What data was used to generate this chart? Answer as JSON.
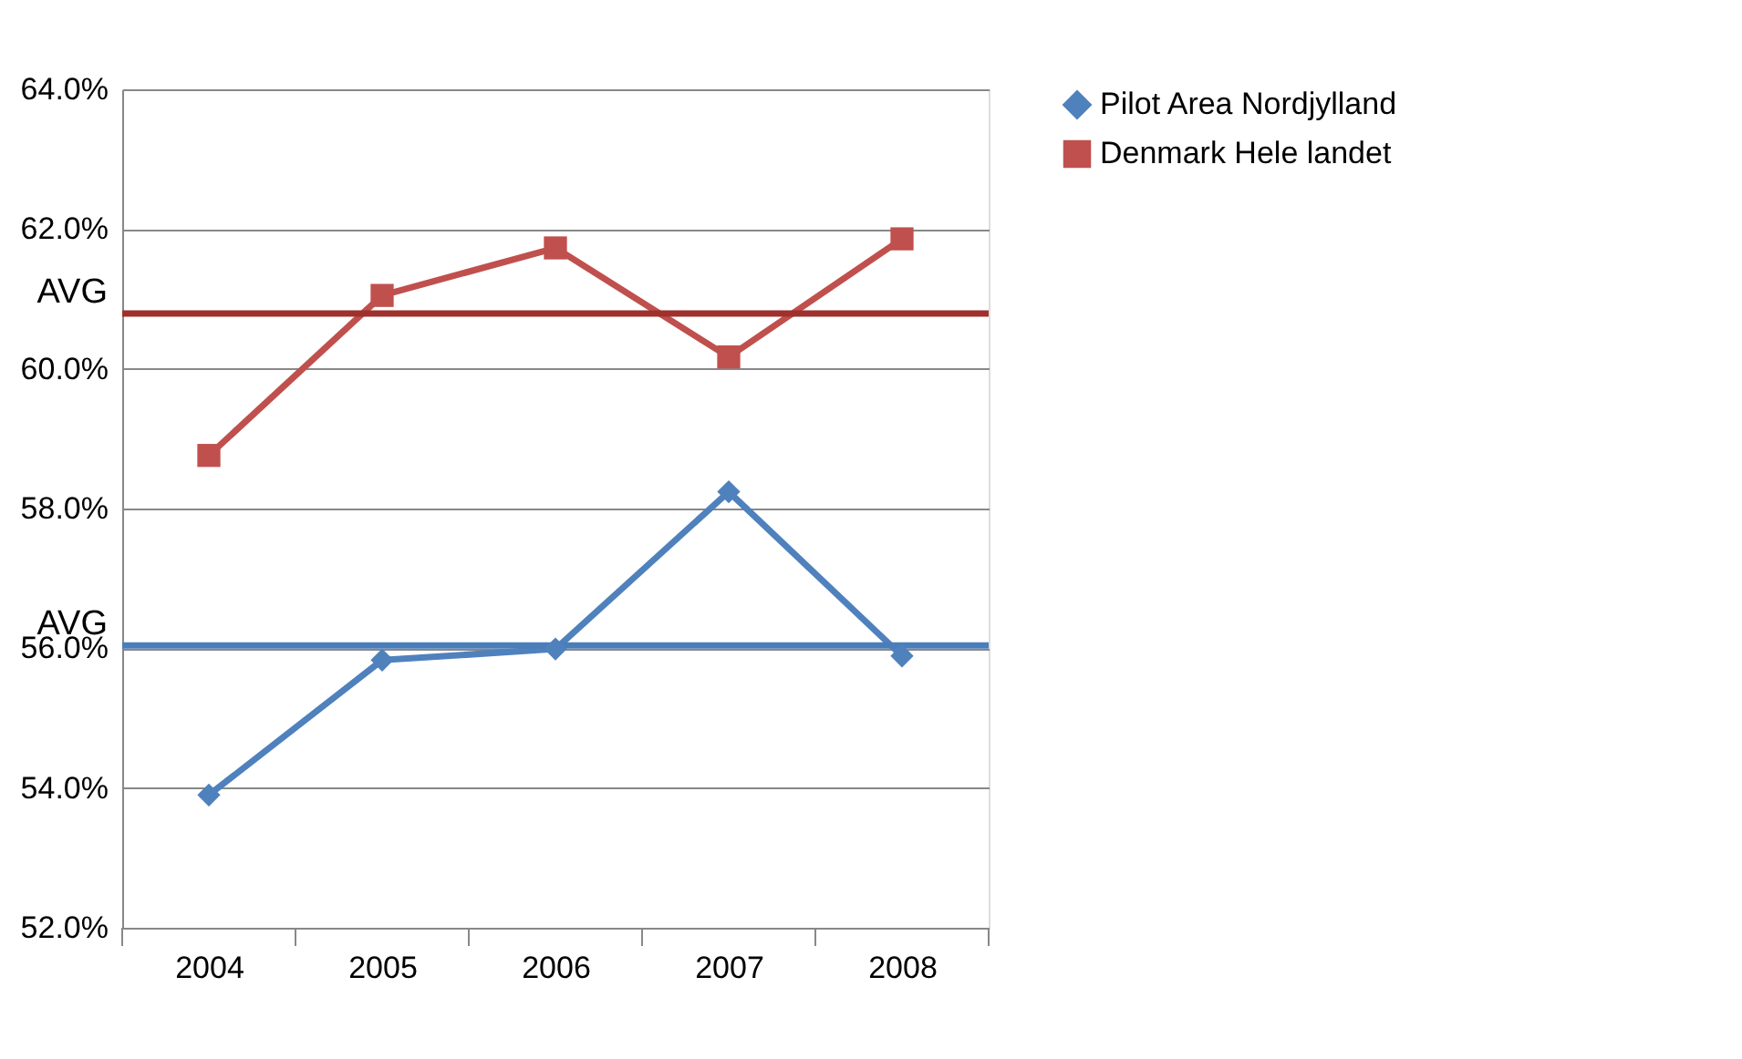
{
  "chart_data": {
    "type": "line",
    "categories": [
      "2004",
      "2005",
      "2006",
      "2007",
      "2008"
    ],
    "series": [
      {
        "name": "Pilot Area Nordjylland",
        "color": "#4f81bd",
        "marker": "diamond",
        "values": [
          53.9,
          55.83,
          55.99,
          58.24,
          55.89
        ]
      },
      {
        "name": "Denmark Hele landet",
        "color": "#c0504d",
        "marker": "square",
        "values": [
          58.76,
          61.05,
          61.73,
          60.17,
          61.86
        ]
      }
    ],
    "ylim": [
      52,
      64
    ],
    "yticks": [
      {
        "value": 52,
        "label": "52.0%"
      },
      {
        "value": 54,
        "label": "54.0%"
      },
      {
        "value": 56,
        "label": "56.0%"
      },
      {
        "value": 58,
        "label": "58.0%"
      },
      {
        "value": 60,
        "label": "60.0%"
      },
      {
        "value": 62,
        "label": "62.0%"
      },
      {
        "value": 64,
        "label": "64.0%"
      }
    ],
    "ref_lines": [
      {
        "axis": "y",
        "value": 60.79,
        "label": "AVG",
        "color": "#a0302d"
      },
      {
        "axis": "y",
        "value": 56.04,
        "label": "AVG",
        "color": "#4a7ebb"
      }
    ],
    "grid": "y",
    "legend": "right",
    "line_style": "solid"
  }
}
